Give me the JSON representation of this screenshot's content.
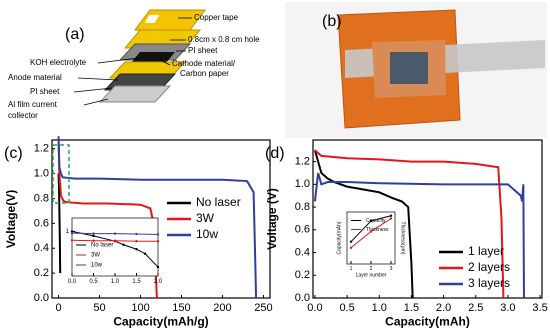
{
  "panel_a": {
    "label": "(a)",
    "labels": [
      "Copper tape",
      "0.8cm x 0.8 cm hole",
      "PI sheet",
      "KOH electrolyte",
      "Cathode material/",
      "Carbon paper",
      "Anode material",
      "PI sheet",
      "Al film current",
      "collector"
    ]
  },
  "panel_b": {
    "label": "(b)"
  },
  "chart_data": [
    {
      "type": "line",
      "panel_label": "(c)",
      "xlabel": "Capacity(mAh/g)",
      "ylabel": "Voltage(V)",
      "xlim": [
        -8,
        258
      ],
      "ylim": [
        0,
        1.27
      ],
      "xticks": [
        0,
        50,
        100,
        150,
        200,
        250
      ],
      "yticks": [
        {
          "value": 0,
          "label": "0.0"
        },
        0.2,
        0.4,
        0.6,
        0.8,
        {
          "value": 1,
          "label": "1.0"
        },
        1.2
      ],
      "legend": "center right",
      "series": [
        {
          "name": "No laser",
          "color": "#000000",
          "x": [
            0,
            0.5,
            1,
            1.5,
            2
          ],
          "values": [
            1.0,
            0.9,
            0.7,
            0.5,
            0.2
          ]
        },
        {
          "name": "3W",
          "color": "#e8141b",
          "x": [
            0,
            1,
            3,
            6,
            10,
            30,
            60,
            100,
            112,
            116,
            118,
            120
          ],
          "values": [
            1.25,
            1.0,
            0.82,
            0.78,
            0.77,
            0.76,
            0.76,
            0.75,
            0.72,
            0.6,
            0.3,
            0
          ]
        },
        {
          "name": "10w",
          "color": "#2e3fa0",
          "x": [
            0,
            1,
            3,
            5,
            20,
            50,
            100,
            150,
            200,
            230,
            238,
            240,
            241
          ],
          "values": [
            1.3,
            1.05,
            1.0,
            0.97,
            0.96,
            0.96,
            0.95,
            0.95,
            0.95,
            0.94,
            0.85,
            0.3,
            0
          ]
        }
      ],
      "inset": {
        "type": "line",
        "xlim": [
          0,
          2
        ],
        "ylim": [
          0,
          1.3
        ],
        "xticks": [
          {
            "value": 0,
            "label": "0.0"
          },
          0.5,
          {
            "value": 1,
            "label": "1.0"
          },
          1.5,
          {
            "value": 2,
            "label": "2.0"
          }
        ],
        "yticks": [
          1
        ],
        "legend": "lower left",
        "series": [
          {
            "name": "No laser",
            "color": "#000000",
            "x": [
              0,
              0.5,
              1,
              1.2,
              1.5,
              1.7,
              2
            ],
            "values": [
              1.0,
              0.9,
              0.78,
              0.7,
              0.6,
              0.5,
              0.2
            ]
          },
          {
            "name": "3W",
            "color": "#e8141b",
            "x": [
              0,
              0.5,
              1,
              1.5,
              2
            ],
            "values": [
              0.8,
              0.79,
              0.79,
              0.78,
              0.78
            ]
          },
          {
            "name": "10w",
            "color": "#2e3fa0",
            "x": [
              0,
              0.5,
              1,
              1.5,
              2
            ],
            "values": [
              0.96,
              0.95,
              0.95,
              0.94,
              0.93
            ]
          }
        ]
      }
    },
    {
      "type": "line",
      "panel_label": "(d)",
      "xlabel": "Capacity(mAh)",
      "ylabel": "Voltage (V)",
      "xlim": [
        -0.03,
        3.53
      ],
      "ylim": [
        0,
        1.39
      ],
      "xticks": [
        {
          "value": 0,
          "label": "0.0"
        },
        0.5,
        {
          "value": 1,
          "label": "1.0"
        },
        1.5,
        {
          "value": 2,
          "label": "2.0"
        },
        2.5,
        {
          "value": 3,
          "label": "3.0"
        },
        3.5
      ],
      "yticks": [
        {
          "value": 0,
          "label": "0.0"
        },
        0.2,
        0.4,
        0.6,
        0.8,
        {
          "value": 1,
          "label": "1.0"
        },
        1.2
      ],
      "legend": "lower right",
      "series": [
        {
          "name": "1 layer",
          "color": "#000000",
          "x": [
            0,
            0.05,
            0.1,
            0.2,
            0.3,
            0.5,
            0.7,
            1.0,
            1.2,
            1.35,
            1.45,
            1.5,
            1.52
          ],
          "values": [
            1.3,
            1.2,
            1.1,
            1.05,
            1.02,
            0.98,
            0.96,
            0.93,
            0.88,
            0.85,
            0.8,
            0.3,
            0
          ]
        },
        {
          "name": "2 layers",
          "color": "#e8141b",
          "x": [
            0,
            0.1,
            0.5,
            1.0,
            1.5,
            2.0,
            2.5,
            2.85,
            2.9,
            2.93
          ],
          "values": [
            1.3,
            1.25,
            1.23,
            1.22,
            1.2,
            1.2,
            1.18,
            1.15,
            0.7,
            0
          ]
        },
        {
          "name": "3 layers",
          "color": "#2e3fa0",
          "x": [
            0,
            0.05,
            0.1,
            0.2,
            0.5,
            1,
            2,
            3,
            3.2,
            3.22,
            3.24,
            3.25
          ],
          "values": [
            0.85,
            1.1,
            1.0,
            1.02,
            1.02,
            1.01,
            1.0,
            1.0,
            0.9,
            0.85,
            1.0,
            0
          ]
        }
      ],
      "inset": {
        "type": "line",
        "xlabel": "Layer number",
        "ylabel": "Capacity(mAh)",
        "y2label": "Thickness(μm)",
        "xlim": [
          0.8,
          3.2
        ],
        "ylim": [
          0,
          3.5
        ],
        "y2lim": [
          0,
          800
        ],
        "xticks": [
          1,
          2,
          3
        ],
        "legend": "upper left",
        "series": [
          {
            "name": "Capacity",
            "color": "#000000",
            "x": [
              1,
              2,
              3
            ],
            "values": [
              1.5,
              2.9,
              3.25
            ]
          },
          {
            "name": "Thickness",
            "color": "#e8141b",
            "axis": "y2",
            "x": [
              1,
              2,
              3
            ],
            "values": [
              250,
              500,
              700
            ]
          }
        ]
      }
    }
  ]
}
